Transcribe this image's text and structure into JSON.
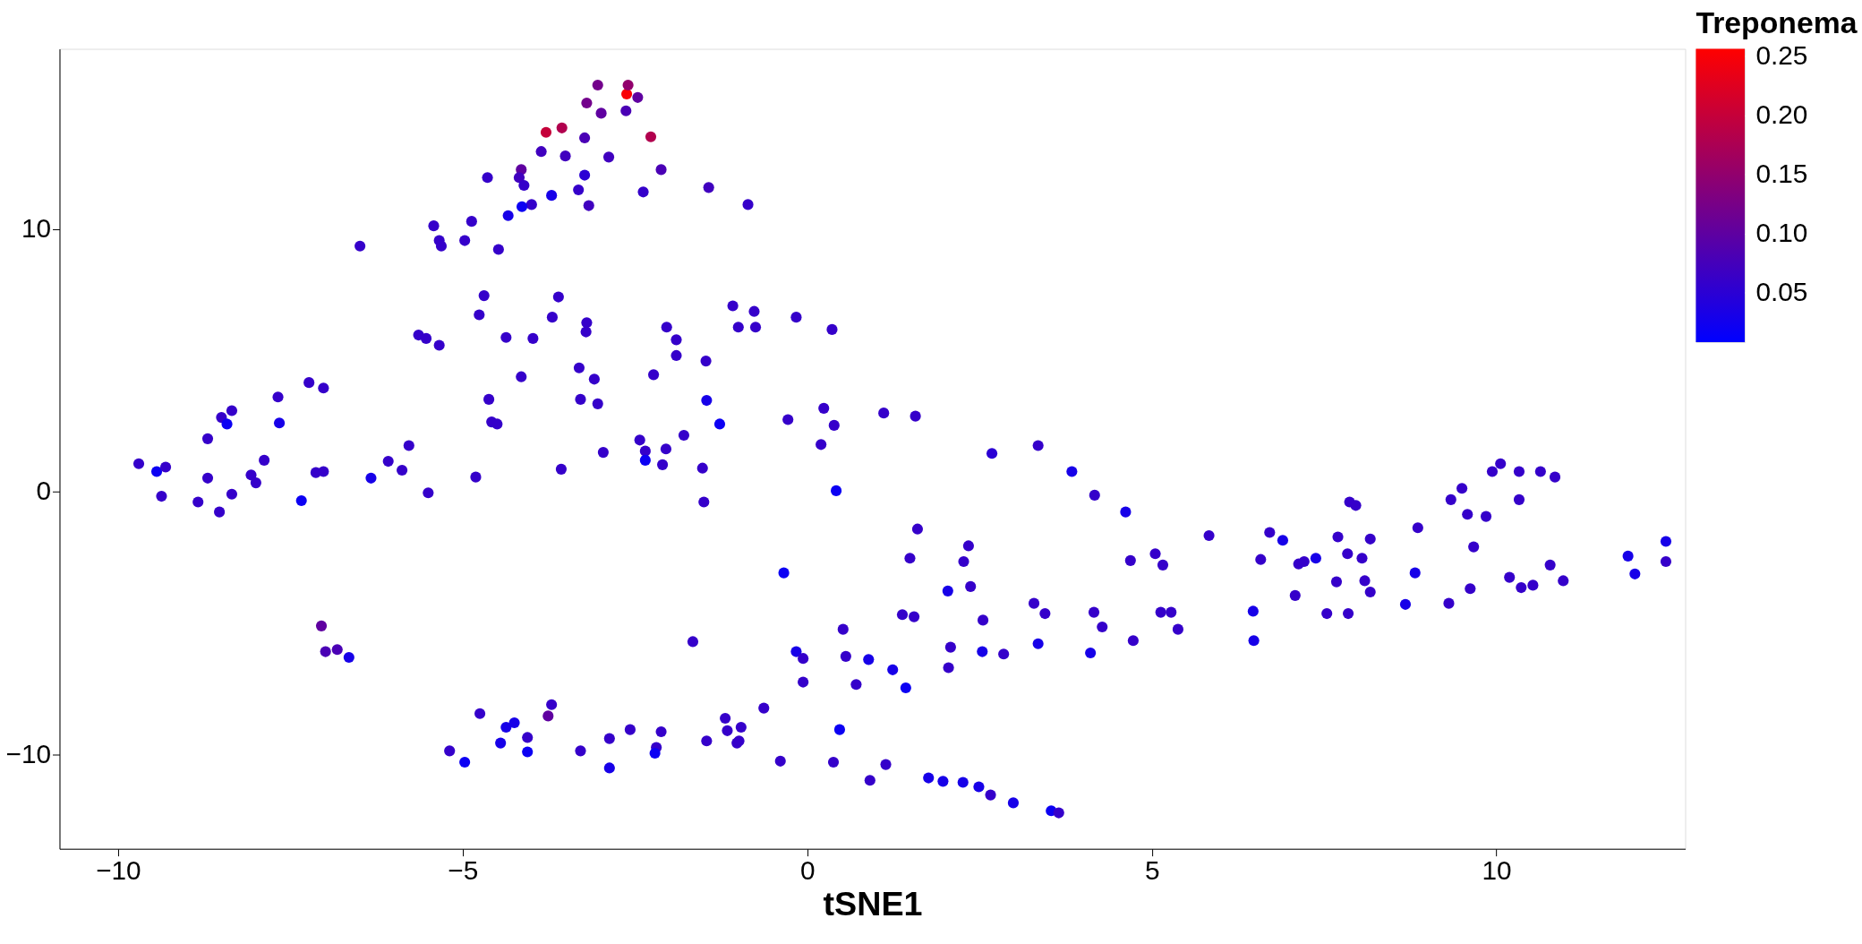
{
  "chart_data": {
    "type": "scatter",
    "xlabel": "tSNE1",
    "clabel": "Treponema",
    "marker": "circle",
    "grid": false,
    "xlim": [
      -10.85,
      12.74
    ],
    "ylim": [
      -13.6,
      16.87
    ],
    "xticks": [
      -10,
      -5,
      0,
      5,
      10
    ],
    "yticks": [
      -10,
      0,
      10
    ],
    "clim": [
      0.008,
      0.256
    ],
    "cticks": [
      {
        "value": 0.05,
        "label": "0.05"
      },
      {
        "value": 0.1,
        "label": "0.10"
      },
      {
        "value": 0.15,
        "label": "0.15"
      },
      {
        "value": 0.2,
        "label": "0.20"
      },
      {
        "value": 0.25,
        "label": "0.25"
      }
    ],
    "x": [
      -2.62,
      -3.04,
      -2.6,
      -2.46,
      -3.2,
      -2.99,
      -2.63,
      -3.79,
      -3.56,
      -2.27,
      -3.23,
      -3.86,
      -3.51,
      -2.88,
      -4.15,
      -2.12,
      -4.64,
      -4.18,
      -3.23,
      -4.11,
      -3.32,
      -3.71,
      -2.38,
      -1.43,
      -4.0,
      -4.14,
      -3.17,
      -4.34,
      -0.86,
      -4.87,
      -5.42,
      -5.34,
      -5.31,
      -4.97,
      -4.48,
      -6.49,
      -4.69,
      -3.61,
      -4.76,
      -3.7,
      -3.2,
      -3.21,
      -1.08,
      -0.77,
      -0.16,
      -1.0,
      -0.75,
      0.36,
      -2.04,
      -5.64,
      -5.53,
      -5.34,
      -4.37,
      -3.98,
      -1.9,
      -1.9,
      -1.47,
      -2.23,
      -4.15,
      -3.31,
      -3.09,
      -1.46,
      -1.27,
      -7.23,
      -7.02,
      -7.68,
      -7.66,
      -8.35,
      -8.5,
      -8.42,
      -8.7,
      -3.29,
      -4.62,
      -3.04,
      -4.58,
      -4.5,
      1.11,
      1.57,
      0.24,
      -0.28,
      0.39,
      -2.43,
      -5.78,
      -6.08,
      -5.88,
      -6.33,
      -7.88,
      -8.07,
      -8.0,
      -7.13,
      -7.02,
      -9.7,
      -9.44,
      -9.31,
      -9.37,
      -8.7,
      -8.84,
      -8.53,
      -8.35,
      -7.34,
      -5.5,
      -4.81,
      -3.57,
      -2.96,
      -2.35,
      -2.35,
      -2.05,
      -1.79,
      -2.1,
      -1.52,
      -1.5,
      0.2,
      0.42,
      2.68,
      3.35,
      3.84,
      4.17,
      4.62,
      1.6,
      1.49,
      2.34,
      2.27,
      2.04,
      2.37,
      4.69,
      5.05,
      5.16,
      5.83,
      6.71,
      6.9,
      6.58,
      7.21,
      7.38,
      7.7,
      7.84,
      8.17,
      7.87,
      7.96,
      8.05,
      8.86,
      8.82,
      8.09,
      7.68,
      7.13,
      7.08,
      7.54,
      7.85,
      8.17,
      8.68,
      9.34,
      9.58,
      9.85,
      9.67,
      9.5,
      9.94,
      10.06,
      10.33,
      10.64,
      10.85,
      10.33,
      10.19,
      10.36,
      10.53,
      10.78,
      10.97,
      9.62,
      9.31,
      11.91,
      12.01,
      12.46,
      12.46,
      -0.34,
      -0.16,
      -0.06,
      -0.06,
      -1.66,
      0.52,
      0.56,
      0.71,
      0.89,
      1.24,
      1.43,
      1.38,
      1.55,
      2.05,
      2.08,
      2.55,
      2.54,
      2.85,
      3.29,
      3.45,
      3.35,
      4.16,
      4.28,
      4.11,
      4.73,
      5.13,
      5.28,
      5.38,
      6.47,
      6.48,
      -7.05,
      -6.99,
      -6.82,
      -6.65,
      -4.75,
      -3.71,
      -3.76,
      -4.25,
      -4.37,
      -4.45,
      -4.06,
      -4.06,
      -5.19,
      -4.97,
      -3.29,
      -2.87,
      -2.57,
      -2.87,
      -2.19,
      -2.21,
      -2.12,
      -1.46,
      -1.19,
      -1.16,
      -0.96,
      -0.99,
      -1.02,
      -0.63,
      -0.39,
      0.47,
      0.38,
      1.14,
      0.91,
      1.76,
      1.97,
      2.26,
      2.49,
      2.66,
      2.99,
      3.54,
      3.65
    ],
    "values": [
      15.15,
      15.49,
      15.49,
      15.02,
      14.81,
      14.42,
      14.51,
      13.69,
      13.86,
      13.52,
      13.48,
      12.96,
      12.79,
      12.75,
      12.27,
      12.27,
      11.97,
      11.97,
      12.06,
      11.67,
      11.5,
      11.29,
      11.42,
      11.59,
      10.94,
      10.86,
      10.9,
      10.52,
      10.94,
      10.3,
      10.13,
      9.57,
      9.36,
      9.57,
      9.23,
      9.36,
      7.47,
      7.42,
      6.74,
      6.65,
      6.44,
      6.09,
      7.08,
      6.87,
      6.65,
      6.27,
      6.27,
      6.18,
      6.27,
      5.97,
      5.84,
      5.58,
      5.88,
      5.84,
      5.79,
      5.19,
      4.98,
      4.46,
      4.38,
      4.72,
      4.29,
      3.48,
      2.58,
      4.16,
      3.95,
      3.61,
      2.62,
      3.09,
      2.83,
      2.58,
      2.02,
      3.52,
      3.52,
      3.35,
      2.66,
      2.58,
      3.0,
      2.88,
      3.18,
      2.75,
      2.53,
      1.97,
      1.76,
      1.16,
      0.82,
      0.52,
      1.2,
      0.64,
      0.34,
      0.73,
      0.77,
      1.07,
      0.77,
      0.94,
      -0.17,
      0.52,
      -0.39,
      -0.77,
      -0.09,
      -0.34,
      -0.04,
      0.56,
      0.86,
      1.5,
      1.55,
      1.2,
      1.63,
      2.15,
      1.03,
      0.9,
      -0.39,
      1.8,
      0.04,
      1.46,
      1.76,
      0.77,
      -0.13,
      -0.77,
      -1.42,
      -2.53,
      -2.06,
      -2.66,
      -3.78,
      -3.61,
      -2.62,
      -2.36,
      -2.79,
      -1.67,
      -1.55,
      -1.85,
      -2.58,
      -2.66,
      -2.53,
      -1.72,
      -2.36,
      -1.8,
      -0.39,
      -0.52,
      -2.53,
      -1.37,
      -3.09,
      -3.39,
      -3.43,
      -2.75,
      -3.95,
      -4.64,
      -4.64,
      -3.82,
      -4.29,
      -0.3,
      -0.86,
      -0.94,
      -2.1,
      0.13,
      0.77,
      1.07,
      0.77,
      0.77,
      0.56,
      -0.3,
      -3.26,
      -3.65,
      -3.56,
      -2.79,
      -3.39,
      -3.69,
      -4.25,
      -2.45,
      -3.13,
      -1.89,
      -2.66,
      -3.09,
      -6.09,
      -6.35,
      -7.25,
      -5.71,
      -5.24,
      -6.27,
      -7.34,
      -6.39,
      -6.78,
      -7.47,
      -4.68,
      -4.76,
      -6.7,
      -5.92,
      -4.89,
      -6.09,
      -6.18,
      -4.25,
      -4.64,
      -5.79,
      -4.59,
      -5.15,
      -6.14,
      -5.67,
      -4.59,
      -4.59,
      -5.24,
      -4.55,
      -5.67,
      -5.11,
      -6.09,
      -6.01,
      -6.31,
      -8.45,
      -8.11,
      -8.54,
      -8.8,
      -8.97,
      -9.57,
      -9.36,
      -9.91,
      -9.87,
      -10.3,
      -9.87,
      -9.4,
      -9.06,
      -10.52,
      -9.74,
      -9.96,
      -9.14,
      -9.49,
      -8.63,
      -9.1,
      -8.97,
      -9.49,
      -9.57,
      -8.24,
      -10.26,
      -9.06,
      -10.3,
      -10.39,
      -10.99,
      -10.9,
      -11.03,
      -11.07,
      -11.24,
      -11.55,
      -11.85,
      -12.15,
      -12.23
    ],
    "cvalues": [
      0.25,
      0.12,
      0.15,
      0.1,
      0.12,
      0.1,
      0.08,
      0.2,
      0.18,
      0.18,
      0.08,
      0.07,
      0.07,
      0.07,
      0.1,
      0.08,
      0.06,
      0.07,
      0.05,
      0.06,
      0.06,
      0.03,
      0.06,
      0.07,
      0.06,
      0.02,
      0.07,
      0.03,
      0.06,
      0.06,
      0.06,
      0.06,
      0.06,
      0.06,
      0.06,
      0.06,
      0.06,
      0.06,
      0.06,
      0.06,
      0.06,
      0.06,
      0.06,
      0.06,
      0.06,
      0.06,
      0.06,
      0.06,
      0.06,
      0.06,
      0.06,
      0.06,
      0.06,
      0.06,
      0.06,
      0.06,
      0.06,
      0.06,
      0.06,
      0.06,
      0.06,
      0.03,
      0.02,
      0.06,
      0.06,
      0.06,
      0.03,
      0.06,
      0.06,
      0.02,
      0.06,
      0.06,
      0.06,
      0.06,
      0.06,
      0.06,
      0.06,
      0.06,
      0.06,
      0.06,
      0.06,
      0.06,
      0.06,
      0.06,
      0.06,
      0.03,
      0.06,
      0.06,
      0.06,
      0.06,
      0.06,
      0.06,
      0.02,
      0.06,
      0.06,
      0.06,
      0.06,
      0.06,
      0.06,
      0.02,
      0.06,
      0.06,
      0.06,
      0.06,
      0.06,
      0.02,
      0.06,
      0.06,
      0.06,
      0.06,
      0.06,
      0.06,
      0.02,
      0.05,
      0.06,
      0.03,
      0.06,
      0.03,
      0.06,
      0.06,
      0.06,
      0.06,
      0.03,
      0.06,
      0.06,
      0.06,
      0.06,
      0.06,
      0.06,
      0.03,
      0.06,
      0.06,
      0.03,
      0.06,
      0.06,
      0.06,
      0.06,
      0.06,
      0.06,
      0.06,
      0.03,
      0.06,
      0.06,
      0.06,
      0.06,
      0.06,
      0.06,
      0.06,
      0.03,
      0.06,
      0.06,
      0.06,
      0.06,
      0.06,
      0.06,
      0.06,
      0.06,
      0.06,
      0.06,
      0.06,
      0.06,
      0.06,
      0.06,
      0.06,
      0.06,
      0.06,
      0.06,
      0.03,
      0.03,
      0.03,
      0.06,
      0.02,
      0.03,
      0.06,
      0.06,
      0.06,
      0.06,
      0.06,
      0.06,
      0.03,
      0.03,
      0.02,
      0.06,
      0.06,
      0.06,
      0.06,
      0.06,
      0.03,
      0.06,
      0.06,
      0.06,
      0.03,
      0.06,
      0.06,
      0.03,
      0.06,
      0.06,
      0.06,
      0.06,
      0.03,
      0.03,
      0.1,
      0.08,
      0.08,
      0.03,
      0.06,
      0.06,
      0.1,
      0.03,
      0.03,
      0.03,
      0.06,
      0.02,
      0.06,
      0.02,
      0.06,
      0.06,
      0.06,
      0.03,
      0.06,
      0.02,
      0.06,
      0.06,
      0.06,
      0.06,
      0.06,
      0.06,
      0.06,
      0.06,
      0.06,
      0.02,
      0.06,
      0.06,
      0.06,
      0.03,
      0.03,
      0.03,
      0.03,
      0.06,
      0.03,
      0.02,
      0.06
    ]
  }
}
